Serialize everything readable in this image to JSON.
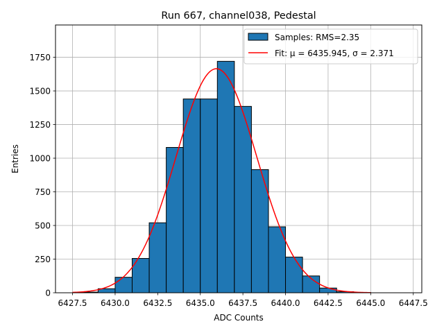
{
  "chart_data": {
    "type": "bar",
    "title": "Run 667, channel038, Pedestal",
    "xlabel": "ADC Counts",
    "ylabel": "Entries",
    "xlim": [
      6426.5,
      6448.0
    ],
    "ylim": [
      0,
      1990
    ],
    "xticks": [
      6427.5,
      6430.0,
      6432.5,
      6435.0,
      6437.5,
      6440.0,
      6442.5,
      6445.0,
      6447.5
    ],
    "xtick_labels": [
      "6427.5",
      "6430.0",
      "6432.5",
      "6435.0",
      "6437.5",
      "6440.0",
      "6442.5",
      "6445.0",
      "6447.5"
    ],
    "yticks": [
      0,
      250,
      500,
      750,
      1000,
      1250,
      1500,
      1750
    ],
    "ytick_labels": [
      "0",
      "250",
      "500",
      "750",
      "1000",
      "1250",
      "1500",
      "1750"
    ],
    "grid": true,
    "legend_position": "top-right",
    "bin_edges": [
      6427.0,
      6428.0,
      6429.0,
      6430.0,
      6431.0,
      6432.0,
      6433.0,
      6434.0,
      6435.0,
      6436.0,
      6437.0,
      6438.0,
      6439.0,
      6440.0,
      6441.0,
      6442.0,
      6443.0,
      6444.0,
      6445.0,
      6446.0,
      6447.0
    ],
    "counts": [
      0,
      5,
      30,
      115,
      255,
      520,
      1080,
      1440,
      1440,
      1720,
      1385,
      915,
      490,
      265,
      125,
      35,
      8,
      2,
      0,
      0
    ],
    "series": [
      {
        "name": "Samples: RMS=2.35",
        "type": "histogram",
        "color": "#1f77b4",
        "edgecolor": "#000000"
      },
      {
        "name": "Fit: μ = 6435.945, σ = 2.371",
        "type": "gaussian-fit",
        "color": "#ff0000",
        "mu": 6435.945,
        "sigma": 2.371,
        "amplitude": 1665,
        "x_range": [
          6427.5,
          6445.0
        ]
      }
    ]
  }
}
